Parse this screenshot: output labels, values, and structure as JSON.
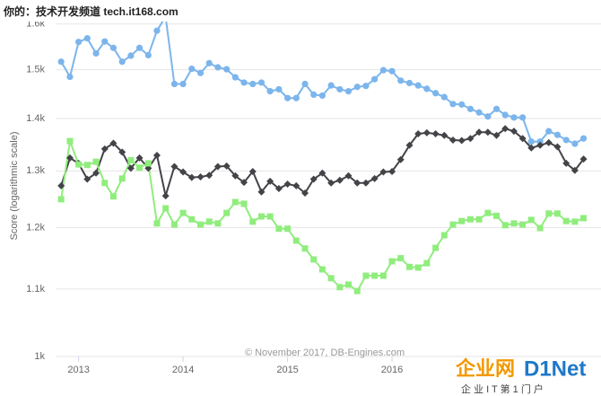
{
  "chart_data": {
    "type": "line",
    "y_label": "Score (logarithmic scale)",
    "credits": "© November 2017, DB-Engines.com",
    "annotations": [
      "你的：技术开发频道 tech.it168.com",
      "企业网",
      "D1Net",
      "企 业 I T 第 1 门 户"
    ],
    "log_scale": true,
    "grid": true,
    "xlim": [
      2012.78,
      2018.0
    ],
    "xticks": [
      2013,
      2014,
      2015,
      2016
    ],
    "ylim": [
      1000,
      1620
    ],
    "yticks": [
      {
        "value": 1000,
        "label": "1k"
      },
      {
        "value": 1100,
        "label": "1.1k"
      },
      {
        "value": 1200,
        "label": "1.2k"
      },
      {
        "value": 1300,
        "label": "1.3k"
      },
      {
        "value": 1400,
        "label": "1.4k"
      },
      {
        "value": 1500,
        "label": "1.5k"
      },
      {
        "value": 1600,
        "label": "1.6k"
      }
    ],
    "x": [
      2012.833,
      2012.917,
      2013,
      2013.083,
      2013.167,
      2013.25,
      2013.333,
      2013.417,
      2013.5,
      2013.583,
      2013.667,
      2013.75,
      2013.833,
      2013.917,
      2014,
      2014.083,
      2014.167,
      2014.25,
      2014.333,
      2014.417,
      2014.5,
      2014.583,
      2014.667,
      2014.75,
      2014.833,
      2014.917,
      2015,
      2015.083,
      2015.167,
      2015.25,
      2015.333,
      2015.417,
      2015.5,
      2015.583,
      2015.667,
      2015.75,
      2015.833,
      2015.917,
      2016,
      2016.083,
      2016.167,
      2016.25,
      2016.333,
      2016.417,
      2016.5,
      2016.583,
      2016.667,
      2016.75,
      2016.833,
      2016.917,
      2017,
      2017.083,
      2017.167,
      2017.25,
      2017.333,
      2017.417,
      2017.5,
      2017.583,
      2017.667,
      2017.75,
      2017.833
    ],
    "series": [
      {
        "color": "#7cb5ec",
        "marker": "circle",
        "values": [
          1517,
          1485,
          1560,
          1568,
          1535,
          1561,
          1547,
          1517,
          1530,
          1547,
          1531,
          1585,
          1617,
          1470,
          1470,
          1502,
          1493,
          1514,
          1505,
          1501,
          1484,
          1473,
          1470,
          1473,
          1455,
          1459,
          1441,
          1441,
          1470,
          1448,
          1446,
          1467,
          1459,
          1455,
          1464,
          1466,
          1480,
          1499,
          1497,
          1477,
          1472,
          1467,
          1460,
          1451,
          1443,
          1429,
          1428,
          1419,
          1412,
          1404,
          1419,
          1407,
          1402,
          1402,
          1355,
          1355,
          1375,
          1368,
          1358,
          1351,
          1361
        ]
      },
      {
        "color": "#434348",
        "marker": "diamond",
        "values": [
          1273,
          1324,
          1314,
          1285,
          1296,
          1341,
          1352,
          1335,
          1305,
          1324,
          1305,
          1329,
          1255,
          1308,
          1298,
          1288,
          1289,
          1292,
          1308,
          1309,
          1291,
          1279,
          1299,
          1262,
          1281,
          1268,
          1276,
          1273,
          1260,
          1285,
          1296,
          1278,
          1283,
          1291,
          1278,
          1278,
          1286,
          1298,
          1299,
          1321,
          1348,
          1370,
          1372,
          1370,
          1367,
          1358,
          1357,
          1361,
          1373,
          1373,
          1367,
          1380,
          1375,
          1361,
          1343,
          1348,
          1353,
          1345,
          1314,
          1301,
          1322
        ]
      },
      {
        "color": "#90ed7d",
        "marker": "square",
        "values": [
          1249,
          1356,
          1312,
          1311,
          1317,
          1278,
          1254,
          1286,
          1320,
          1306,
          1314,
          1207,
          1233,
          1205,
          1225,
          1214,
          1205,
          1210,
          1207,
          1225,
          1244,
          1241,
          1210,
          1219,
          1219,
          1198,
          1198,
          1178,
          1165,
          1147,
          1131,
          1117,
          1103,
          1107,
          1097,
          1121,
          1121,
          1121,
          1144,
          1149,
          1135,
          1134,
          1141,
          1166,
          1187,
          1205,
          1211,
          1214,
          1214,
          1225,
          1220,
          1204,
          1207,
          1205,
          1213,
          1199,
          1224,
          1224,
          1211,
          1210,
          1216
        ]
      }
    ]
  }
}
